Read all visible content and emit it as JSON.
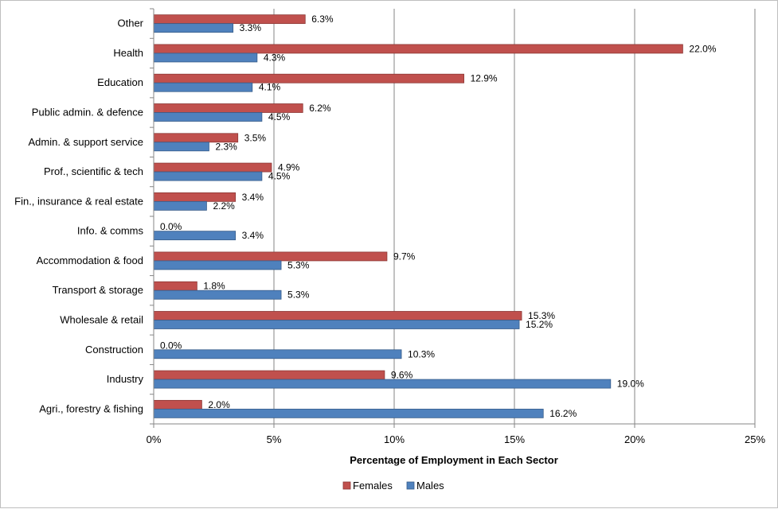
{
  "chart_data": {
    "type": "bar",
    "orientation": "horizontal",
    "categories": [
      "Other",
      "Health",
      "Education",
      "Public admin. & defence",
      "Admin. & support service",
      "Prof., scientific & tech",
      "Fin., insurance & real estate",
      "Info. & comms",
      "Accommodation & food",
      "Transport & storage",
      "Wholesale & retail",
      "Construction",
      "Industry",
      "Agri., forestry & fishing"
    ],
    "series": [
      {
        "name": "Females",
        "color": "#c0504d",
        "values": [
          6.3,
          22.0,
          12.9,
          6.2,
          3.5,
          4.9,
          3.4,
          0.0,
          9.7,
          1.8,
          15.3,
          0.0,
          9.6,
          2.0
        ],
        "labels": [
          "6.3%",
          "22.0%",
          "12.9%",
          "6.2%",
          "3.5%",
          "4.9%",
          "3.4%",
          "0.0%",
          "9.7%",
          "1.8%",
          "15.3%",
          "0.0%",
          "9.6%",
          "2.0%"
        ]
      },
      {
        "name": "Males",
        "color": "#4f81bd",
        "values": [
          3.3,
          4.3,
          4.1,
          4.5,
          2.3,
          4.5,
          2.2,
          3.4,
          5.3,
          5.3,
          15.2,
          10.3,
          19.0,
          16.2
        ],
        "labels": [
          "3.3%",
          "4.3%",
          "4.1%",
          "4.5%",
          "2.3%",
          "4.5%",
          "2.2%",
          "3.4%",
          "5.3%",
          "5.3%",
          "15.2%",
          "10.3%",
          "19.0%",
          "16.2%"
        ]
      }
    ],
    "xlim": [
      0,
      25
    ],
    "x_ticks": [
      0,
      5,
      10,
      15,
      20,
      25
    ],
    "x_tick_labels": [
      "0%",
      "5%",
      "10%",
      "15%",
      "20%",
      "25%"
    ],
    "xlabel": "Percentage of Employment in Each Sector",
    "grid": "vertical",
    "legend_position": "bottom"
  }
}
